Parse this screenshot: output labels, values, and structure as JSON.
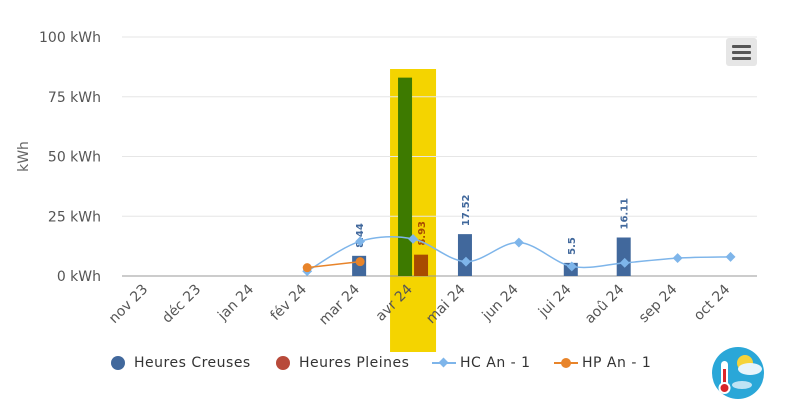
{
  "chart_data": {
    "type": "bar",
    "categories": [
      "nov 23",
      "déc 23",
      "jan 24",
      "fév 24",
      "mar 24",
      "avr 24",
      "mai 24",
      "jun 24",
      "jui 24",
      "aoû 24",
      "sep 24",
      "oct 24"
    ],
    "ylabel": "kWh",
    "ylim": [
      0,
      100
    ],
    "y_ticks": [
      0,
      25,
      50,
      75,
      100
    ],
    "y_tick_labels": [
      "0 kWh",
      "25 kWh",
      "50 kWh",
      "75 kWh",
      "100 kWh"
    ],
    "highlight_category": "avr 24",
    "series": [
      {
        "name": "Heures Creuses",
        "kind": "bar",
        "color": "#41689c",
        "highlight_color": "#3d7a00",
        "values": [
          null,
          null,
          null,
          null,
          8.44,
          83,
          17.52,
          null,
          5.5,
          16.11,
          null,
          null
        ],
        "labels": [
          null,
          null,
          null,
          null,
          "8.44",
          null,
          "17.52",
          null,
          "5.5",
          "16.11",
          null,
          null
        ]
      },
      {
        "name": "Heures Pleines",
        "kind": "bar",
        "color": "#b83a1f",
        "highlight_color": "#a84b00",
        "values": [
          null,
          null,
          null,
          null,
          null,
          8.93,
          null,
          null,
          null,
          null,
          null,
          null
        ],
        "labels": [
          null,
          null,
          null,
          null,
          null,
          "8.93",
          null,
          null,
          null,
          null,
          null,
          null
        ]
      },
      {
        "name": "HC An - 1",
        "kind": "line",
        "color": "#7eb5ea",
        "values": [
          null,
          null,
          null,
          2,
          14.5,
          15.5,
          6,
          14,
          4,
          5.5,
          7.5,
          8
        ]
      },
      {
        "name": "HP An - 1",
        "kind": "line",
        "color": "#e8842a",
        "values": [
          null,
          null,
          null,
          3.5,
          6,
          null,
          null,
          null,
          null,
          null,
          null,
          null
        ]
      }
    ],
    "legend_position": "bottom",
    "grid": true
  },
  "colors": {
    "highlight_band": "#f4d400",
    "grid": "#e6e6e6",
    "axis": "#999999"
  },
  "menu": {
    "icon": "hamburger-menu-icon"
  },
  "weather_icon": "weather-thermometer-icon"
}
